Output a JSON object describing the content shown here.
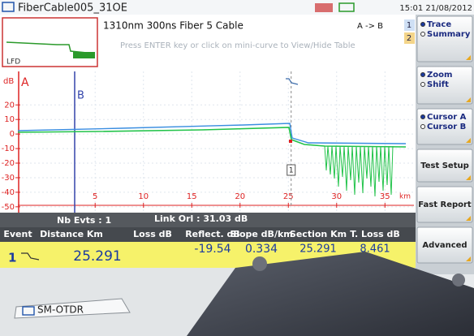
{
  "header": {
    "title": "FiberCable005_31OE",
    "time": "15:01 21/08/2012"
  },
  "info": {
    "settings": "1310nm 300ns Fiber 5 Cable",
    "direction": "A -> B",
    "hint": "Press ENTER key  or click on mini-curve to View/Hide Table",
    "mini_curve_label": "LFD",
    "trace_numbers": [
      "1",
      "2"
    ]
  },
  "side_menu": [
    {
      "options": [
        "Trace",
        "Summary"
      ]
    },
    {
      "options": [
        "Zoom",
        "Shift"
      ]
    },
    {
      "options": [
        "Cursor A",
        "Cursor B"
      ]
    },
    {
      "label": "Test Setup"
    },
    {
      "label": "Fast Report"
    },
    {
      "label": "Advanced"
    }
  ],
  "trace_chart": {
    "y_unit": "dB",
    "x_unit": "km",
    "cursors": [
      "A",
      "B"
    ],
    "event_marker": "1",
    "xlim": [
      -3,
      38
    ],
    "ylim": [
      -54,
      43
    ],
    "xticks": [
      5,
      10,
      15,
      20,
      25,
      30,
      35
    ],
    "yticks": [
      20,
      10,
      0,
      -10,
      -20,
      -30,
      -40,
      -50
    ]
  },
  "summary": {
    "events": "Nb Evts : 1",
    "link_orl": "Link Orl : 31.03 dB"
  },
  "table": {
    "headers": [
      "Event",
      "Distance  Km",
      "Loss dB",
      "Reflect. dB",
      "Slope  dB/km",
      "Section Km",
      "T. Loss dB"
    ],
    "row": {
      "event": 1,
      "distance": 25.291,
      "reflect": -19.54,
      "slope": 0.334,
      "section": 25.291,
      "total_loss": 8.461
    }
  },
  "tab": "SM-OTDR"
}
